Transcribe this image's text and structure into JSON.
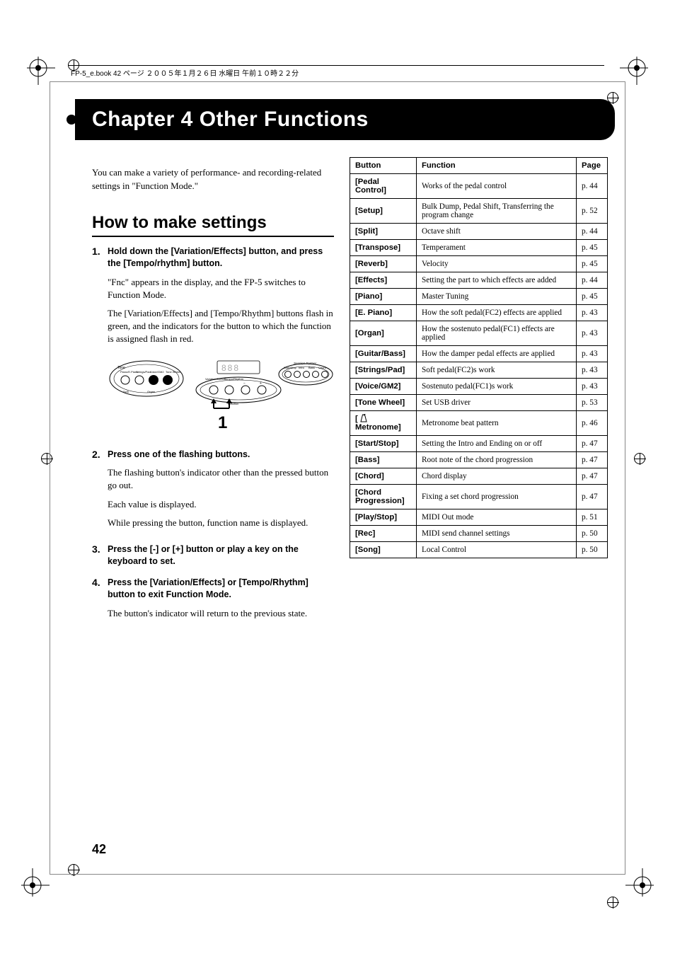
{
  "header_line": "FP-5_e.book 42 ページ ２００５年１月２６日 水曜日 午前１０時２２分",
  "chapter_title": "Chapter 4 Other Functions",
  "intro": "You can make a variety of performance- and recording-related settings in \"Function Mode.\"",
  "section_title": "How to make settings",
  "steps": [
    {
      "num": "1.",
      "lead": "Hold down the [Variation/Effects] button, and press the [Tempo/rhythm] button.",
      "paras": [
        "\"Fnc\" appears in the display, and the FP-5 switches to Function Mode.",
        "The [Variation/Effects] and [Tempo/Rhythm] buttons flash in green, and the indicators for the button to which the function is assigned flash in red."
      ]
    },
    {
      "num": "2.",
      "lead": "Press one of the flashing buttons.",
      "paras": [
        "The flashing button's indicator other than the pressed button go out.",
        "Each value is displayed.",
        "While pressing the button, function name is displayed."
      ]
    },
    {
      "num": "3.",
      "lead": "Press the [-] or [+] button or play a key on the keyboard to set.",
      "paras": []
    },
    {
      "num": "4.",
      "lead": "Press the [Variation/Effects] or [Tempo/Rhythm] button to exit Function Mode.",
      "paras": [
        "The button's indicator will return to the previous state."
      ]
    }
  ],
  "figure_arrow_label": "1",
  "table": {
    "columns": [
      "Button",
      "Function",
      "Page"
    ],
    "rows": [
      {
        "button": "[Pedal Control]",
        "function": "Works of the pedal control",
        "page": "p. 44"
      },
      {
        "button": "[Setup]",
        "function": "Bulk Dump, Pedal Shift, Transferring the program change",
        "page": "p. 52"
      },
      {
        "button": "[Split]",
        "function": "Octave shift",
        "page": "p. 44"
      },
      {
        "button": "[Transpose]",
        "function": "Temperament",
        "page": "p. 45"
      },
      {
        "button": "[Reverb]",
        "function": "Velocity",
        "page": "p. 45"
      },
      {
        "button": "[Effects]",
        "function": "Setting the part to which effects are added",
        "page": "p. 44"
      },
      {
        "button": "[Piano]",
        "function": "Master Tuning",
        "page": "p. 45"
      },
      {
        "button": "[E. Piano]",
        "function": "How the soft pedal(FC2) effects are applied",
        "page": "p. 43"
      },
      {
        "button": "[Organ]",
        "function": "How the sostenuto pedal(FC1) effects are applied",
        "page": "p. 43"
      },
      {
        "button": "[Guitar/Bass]",
        "function": "How the damper pedal effects are applied",
        "page": "p. 43"
      },
      {
        "button": "[Strings/Pad]",
        "function": "Soft pedal(FC2)s work",
        "page": "p. 43"
      },
      {
        "button": "[Voice/GM2]",
        "function": "Sostenuto pedal(FC1)s work",
        "page": "p. 43"
      },
      {
        "button": "[Tone Wheel]",
        "function": "Set USB driver",
        "page": "p. 53"
      },
      {
        "button_raw": "metronome",
        "function": "Metronome beat pattern",
        "page": "p. 46"
      },
      {
        "button": "[Start/Stop]",
        "function": "Setting the Intro and Ending on or off",
        "page": "p. 47"
      },
      {
        "button": "[Bass]",
        "function": "Root note of the chord progression",
        "page": "p. 47"
      },
      {
        "button": "[Chord]",
        "function": "Chord display",
        "page": "p. 47"
      },
      {
        "button": "[Chord Progression]",
        "function": "Fixing a set chord progression",
        "page": "p. 47"
      },
      {
        "button": "[Play/Stop]",
        "function": "MIDI Out mode",
        "page": "p. 51"
      },
      {
        "button": "[Rec]",
        "function": "MIDI send channel settings",
        "page": "p. 50"
      },
      {
        "button": "[Song]",
        "function": "Local Control",
        "page": "p. 50"
      }
    ]
  },
  "page_number": "42",
  "colors": {
    "banner_bg": "#000000",
    "banner_fg": "#ffffff"
  },
  "typography": {
    "chapter_fontsize": 30,
    "section_fontsize": 24,
    "body_fontsize": 13
  }
}
